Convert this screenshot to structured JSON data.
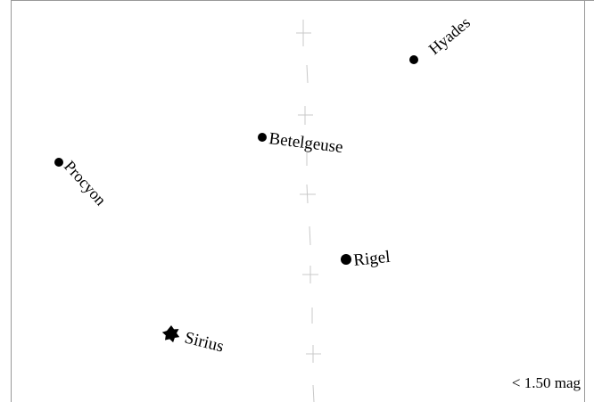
{
  "sky_map": {
    "objects": [
      {
        "name": "Hyades",
        "symbol": "dot"
      },
      {
        "name": "Betelgeuse",
        "symbol": "dot"
      },
      {
        "name": "Procyon",
        "symbol": "dot"
      },
      {
        "name": "Rigel",
        "symbol": "dot"
      },
      {
        "name": "Sirius",
        "symbol": "star-burst-icon"
      }
    ],
    "magnitude_limit_label": "< 1.50 mag"
  },
  "colors": {
    "background": "#ffffff",
    "frame": "#999999",
    "ink": "#000000",
    "grid": "#c8c8c8"
  }
}
